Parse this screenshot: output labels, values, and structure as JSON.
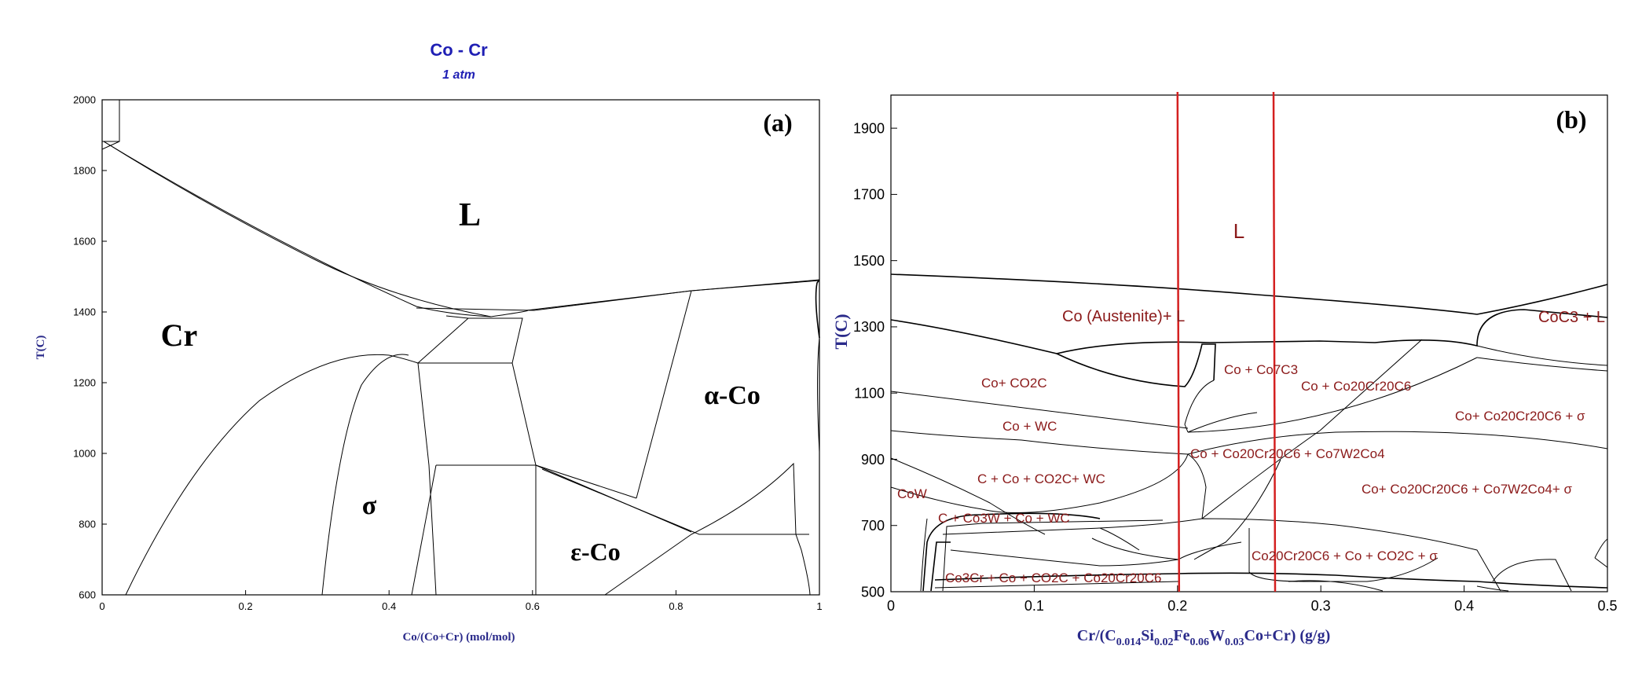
{
  "chart_data": [
    {
      "type": "line",
      "panel_label": "(a)",
      "title": "Co - Cr",
      "subtitle": "1 atm",
      "xlabel": "Co/(Co+Cr) (mol/mol)",
      "ylabel": "T(C)",
      "xlim": [
        0,
        1
      ],
      "ylim": [
        600,
        2000
      ],
      "xticks": [
        "0",
        "0.2",
        "0.4",
        "0.6",
        "0.8",
        "1"
      ],
      "yticks": [
        "600",
        "800",
        "1000",
        "1200",
        "1400",
        "1600",
        "1800",
        "2000"
      ],
      "phase_labels": [
        "L",
        "Cr",
        "α-Co",
        "σ",
        "ε-Co"
      ]
    },
    {
      "type": "line",
      "panel_label": "(b)",
      "xlabel": "Cr/(C 0.014 Si 0.02 Fe 0.06 W 0.03 Co+Cr) (g/g)",
      "xlabel_parts": {
        "p1": "Cr/(C",
        "s1": "0.014",
        "p2": "Si",
        "s2": "0.02",
        "p3": "Fe",
        "s3": "0.06",
        "p4": "W",
        "s4": "0.03",
        "p5": "Co+Cr) (g/g)"
      },
      "ylabel": "T(C)",
      "xlim": [
        0,
        0.5
      ],
      "ylim": [
        500,
        2000
      ],
      "xticks": [
        "0",
        "0.1",
        "0.2",
        "0.3",
        "0.4",
        "0.5"
      ],
      "yticks": [
        "500",
        "700",
        "900",
        "1100",
        "1300",
        "1500",
        "1700",
        "1900"
      ],
      "vertical_markers_x": [
        0.2,
        0.267
      ],
      "marker_color": "#d42020",
      "phase_labels": {
        "L": "L",
        "austenite_L": "Co (Austenite)+ L",
        "coc3_L": "CoC3 + L",
        "co_co2c": "Co+ CO2C",
        "co_co7c3": "Co + Co7C3",
        "co_co20cr20c6": "Co + Co20Cr20C6",
        "co_co20cr20c6_sigma": "Co+ Co20Cr20C6 + σ",
        "co_wc": "Co + WC",
        "co_cr_c_w": "Co + Co20Cr20C6 + Co7W2Co4",
        "c_co_co2c_wc": "C + Co + CO2C+ WC",
        "cow": "CoW",
        "co_cr_c_w_sigma": "Co+ Co20Cr20C6 + Co7W2Co4+ σ",
        "c_co3w_co_wc": "C + Co3W + Co + WC",
        "co20cr20c6_co_co2c_sigma": "Co20Cr20C6 + Co + CO2C + σ",
        "co3cr_co_co2c": "Co3Cr + Co + CO2C + Co20Cr20C6"
      }
    }
  ]
}
